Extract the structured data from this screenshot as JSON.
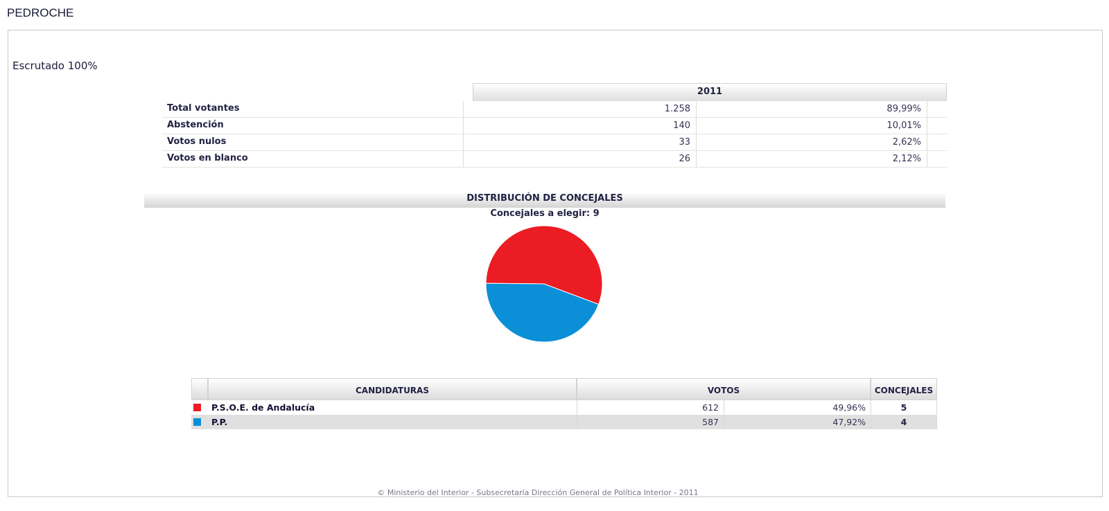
{
  "page": {
    "title": "PEDROCHE",
    "scrutiny": "Escrutado 100%",
    "footer": "© Ministerio del Interior - Subsecretaría Dirección General de Política Interior - 2011"
  },
  "summary": {
    "year": "2011",
    "rows": [
      {
        "label": "Total votantes",
        "value": "1.258",
        "percent": "89,99%"
      },
      {
        "label": "Abstención",
        "value": "140",
        "percent": "10,01%"
      },
      {
        "label": "Votos nulos",
        "value": "33",
        "percent": "2,62%"
      },
      {
        "label": "Votos en blanco",
        "value": "26",
        "percent": "2,12%"
      }
    ]
  },
  "distribution": {
    "title": "DISTRIBUCIÓN DE CONCEJALES",
    "seats_to_elect": "Concejales a elegir: 9"
  },
  "candidates": {
    "headers": {
      "party": "CANDIDATURAS",
      "votes": "VOTOS",
      "seats": "CONCEJALES"
    },
    "rows": [
      {
        "party": "P.S.O.E. de Andalucía",
        "votes": "612",
        "percent": "49,96%",
        "seats": "5",
        "color": "#ec1c24"
      },
      {
        "party": "P.P.",
        "votes": "587",
        "percent": "47,92%",
        "seats": "4",
        "color": "#0b8fd6"
      }
    ]
  },
  "chart_data": {
    "type": "pie",
    "labels": [
      "P.S.O.E. de Andalucía",
      "P.P."
    ],
    "values": [
      5,
      4
    ],
    "colors": [
      "#ec1c24",
      "#0b8fd6"
    ]
  }
}
